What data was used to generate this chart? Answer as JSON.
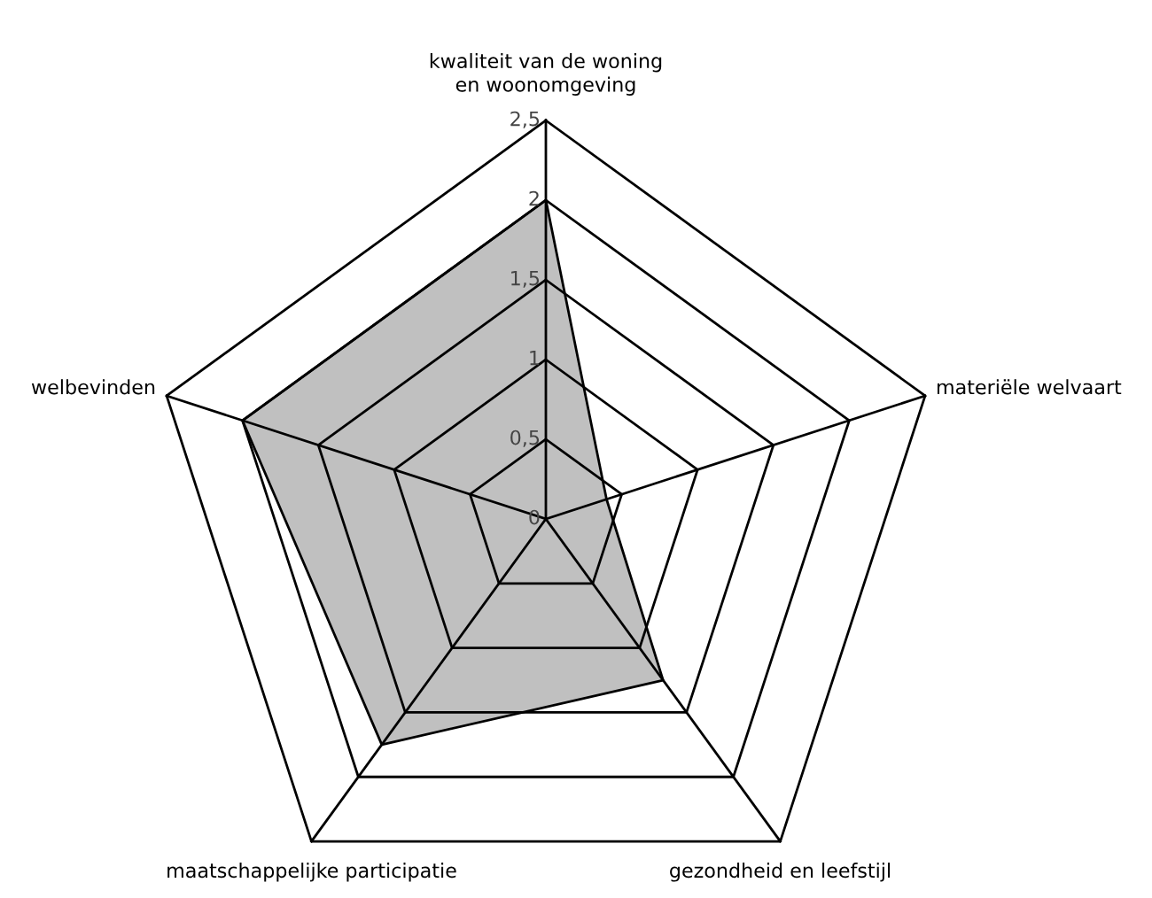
{
  "chart_data": {
    "type": "radar",
    "categories": [
      "kwaliteit van de woning\nen woonomgeving",
      "materiële welvaart",
      "gezondheid en leefstijl",
      "maatschappelijke participatie",
      "welbevinden"
    ],
    "series": [
      {
        "color": "#c0c0c0",
        "values": [
          2,
          0.4,
          1.25,
          1.75,
          2
        ]
      }
    ],
    "ylim": [
      0,
      2.5
    ],
    "yticks": [
      0,
      {
        "value": 0.5,
        "label": "0,5"
      },
      1,
      {
        "value": 1.5,
        "label": "1,5"
      },
      2,
      {
        "value": 2.5,
        "label": "2,5"
      }
    ],
    "grid": true
  }
}
